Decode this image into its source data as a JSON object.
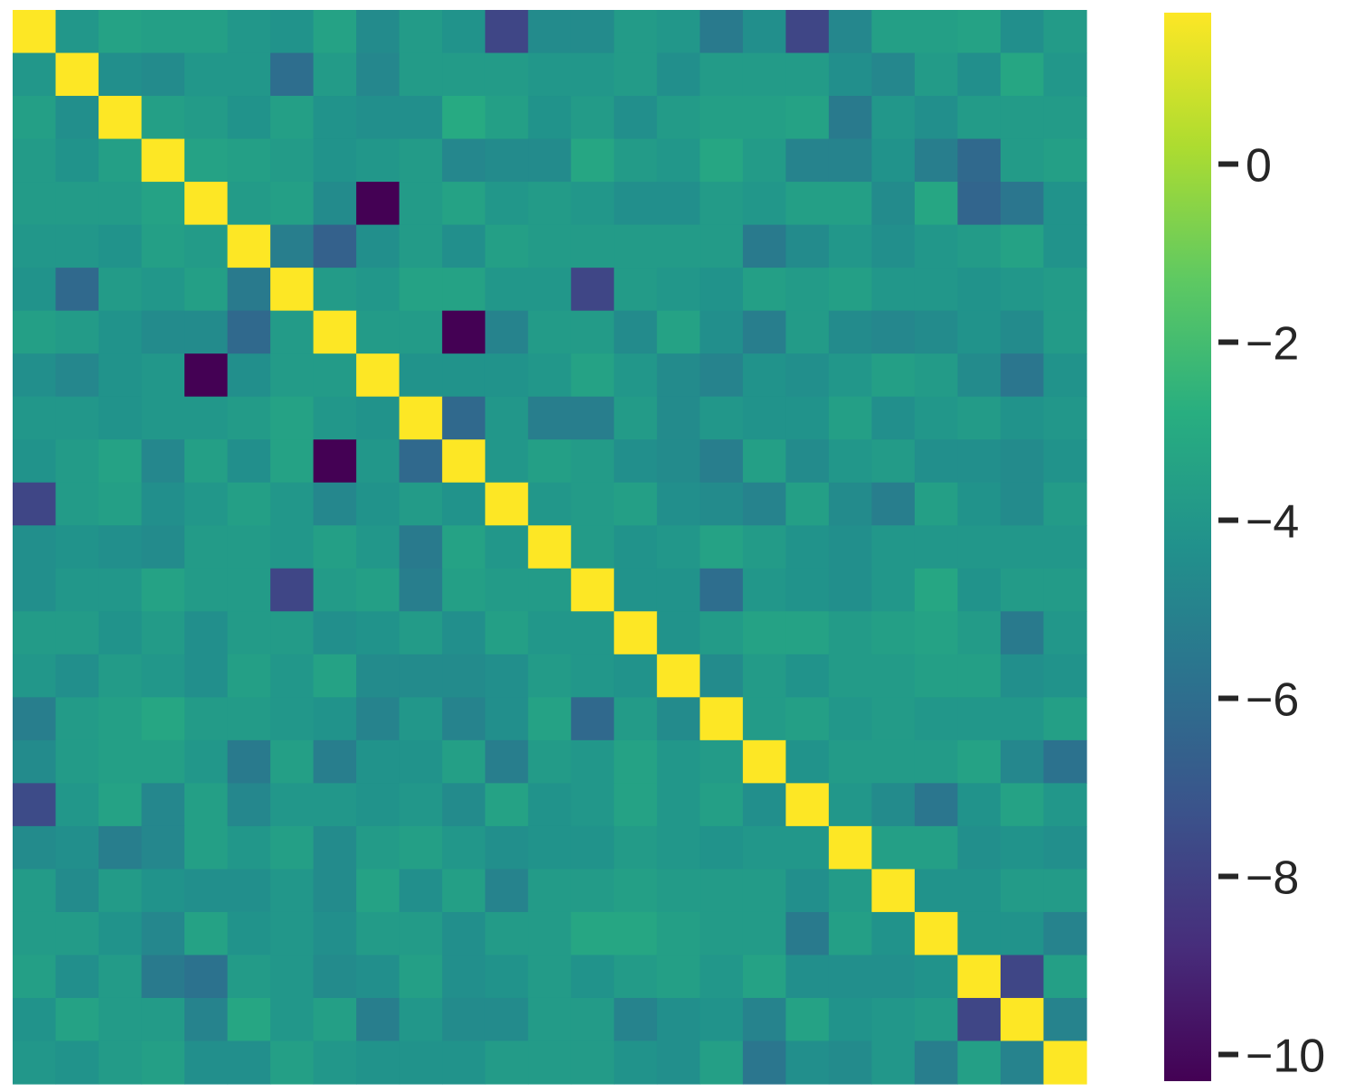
{
  "chart_data": {
    "type": "heatmap",
    "rows": 25,
    "cols": 25,
    "colormap": "viridis",
    "vmin": -10.3,
    "vmax": 1.7,
    "colorbar_ticks": [
      0,
      -2,
      -4,
      -6,
      -8,
      -10
    ],
    "colorbar_tick_labels": [
      "0",
      "−2",
      "−4",
      "−6",
      "−8",
      "−10"
    ],
    "matrix": [
      [
        1.7,
        -4.0,
        -3.4,
        -3.6,
        -3.6,
        -4.0,
        -4.2,
        -3.4,
        -4.6,
        -3.8,
        -4.2,
        -7.8,
        -4.6,
        -4.6,
        -3.8,
        -4.0,
        -5.4,
        -4.4,
        -7.8,
        -4.8,
        -3.6,
        -3.6,
        -3.4,
        -4.4,
        -3.8
      ],
      [
        -4.0,
        1.7,
        -4.4,
        -4.6,
        -4.0,
        -4.0,
        -6.0,
        -3.8,
        -4.8,
        -3.8,
        -3.8,
        -3.8,
        -4.0,
        -4.0,
        -3.8,
        -4.4,
        -3.8,
        -3.8,
        -3.8,
        -4.4,
        -4.8,
        -3.8,
        -4.4,
        -3.2,
        -4.0
      ],
      [
        -3.6,
        -4.4,
        1.7,
        -3.6,
        -3.8,
        -4.2,
        -3.6,
        -4.2,
        -4.4,
        -4.4,
        -3.0,
        -3.6,
        -4.2,
        -3.8,
        -4.4,
        -3.8,
        -3.6,
        -3.6,
        -3.4,
        -5.4,
        -4.0,
        -4.4,
        -3.8,
        -3.8,
        -3.8
      ],
      [
        -3.8,
        -4.2,
        -3.6,
        1.7,
        -3.4,
        -3.6,
        -3.8,
        -4.2,
        -4.0,
        -3.8,
        -4.8,
        -4.6,
        -4.6,
        -3.2,
        -3.8,
        -4.0,
        -3.2,
        -3.8,
        -5.0,
        -5.0,
        -4.2,
        -5.2,
        -6.2,
        -3.8,
        -3.6
      ],
      [
        -3.8,
        -3.8,
        -3.8,
        -3.4,
        1.7,
        -3.8,
        -3.6,
        -4.6,
        -10.3,
        -3.8,
        -3.4,
        -4.0,
        -3.8,
        -4.0,
        -4.4,
        -4.4,
        -3.8,
        -4.0,
        -3.6,
        -3.6,
        -4.6,
        -3.2,
        -6.4,
        -5.6,
        -4.2
      ],
      [
        -4.0,
        -4.0,
        -4.2,
        -3.6,
        -3.8,
        1.7,
        -5.2,
        -6.6,
        -4.4,
        -3.8,
        -4.4,
        -3.6,
        -3.8,
        -3.8,
        -3.8,
        -3.8,
        -3.8,
        -5.4,
        -4.6,
        -4.0,
        -4.4,
        -4.0,
        -3.8,
        -3.4,
        -4.2
      ],
      [
        -4.2,
        -6.2,
        -3.8,
        -4.0,
        -3.6,
        -5.4,
        1.7,
        -3.8,
        -4.0,
        -3.4,
        -3.4,
        -4.0,
        -4.0,
        -7.8,
        -3.8,
        -4.0,
        -4.2,
        -3.6,
        -3.8,
        -3.6,
        -4.0,
        -4.0,
        -4.2,
        -4.0,
        -3.8
      ],
      [
        -3.6,
        -3.8,
        -4.2,
        -4.6,
        -4.6,
        -6.2,
        -3.8,
        1.7,
        -3.8,
        -3.8,
        -10.3,
        -5.0,
        -3.8,
        -3.8,
        -4.6,
        -3.4,
        -4.4,
        -5.2,
        -3.8,
        -4.6,
        -4.8,
        -4.6,
        -4.2,
        -4.6,
        -3.8
      ],
      [
        -4.4,
        -4.8,
        -4.2,
        -4.0,
        -10.3,
        -4.4,
        -3.8,
        -3.8,
        1.7,
        -4.2,
        -4.2,
        -4.2,
        -4.0,
        -3.4,
        -4.0,
        -4.6,
        -5.0,
        -4.2,
        -4.4,
        -4.0,
        -3.6,
        -3.8,
        -4.6,
        -5.6,
        -4.2
      ],
      [
        -4.0,
        -4.0,
        -4.2,
        -4.0,
        -4.0,
        -3.8,
        -3.4,
        -4.0,
        -4.2,
        1.7,
        -6.2,
        -4.0,
        -5.2,
        -5.2,
        -3.8,
        -4.6,
        -4.0,
        -4.2,
        -4.2,
        -3.6,
        -4.4,
        -4.0,
        -3.8,
        -4.2,
        -4.0
      ],
      [
        -4.2,
        -3.8,
        -3.4,
        -4.8,
        -3.6,
        -4.4,
        -3.4,
        -10.3,
        -4.0,
        -6.2,
        1.7,
        -4.0,
        -3.6,
        -3.8,
        -4.4,
        -4.6,
        -5.2,
        -3.6,
        -4.6,
        -4.0,
        -3.8,
        -4.4,
        -4.4,
        -4.6,
        -4.2
      ],
      [
        -7.8,
        -3.8,
        -3.6,
        -4.4,
        -4.0,
        -3.6,
        -4.0,
        -4.8,
        -4.2,
        -3.8,
        -4.2,
        1.7,
        -4.0,
        -3.8,
        -3.6,
        -4.4,
        -4.6,
        -5.0,
        -3.6,
        -4.6,
        -5.2,
        -3.6,
        -4.2,
        -4.6,
        -3.8
      ],
      [
        -4.4,
        -4.2,
        -4.4,
        -4.6,
        -3.8,
        -3.8,
        -4.0,
        -3.6,
        -4.0,
        -5.4,
        -3.4,
        -4.0,
        1.7,
        -3.8,
        -4.2,
        -4.0,
        -3.4,
        -3.8,
        -4.2,
        -4.4,
        -4.0,
        -4.0,
        -4.0,
        -4.0,
        -4.0
      ],
      [
        -4.4,
        -4.0,
        -4.0,
        -3.4,
        -3.8,
        -3.8,
        -7.8,
        -3.8,
        -3.6,
        -5.2,
        -3.6,
        -3.8,
        -3.8,
        1.7,
        -4.2,
        -4.2,
        -6.0,
        -4.0,
        -4.2,
        -4.4,
        -4.0,
        -3.2,
        -4.2,
        -3.8,
        -3.8
      ],
      [
        -3.8,
        -3.8,
        -4.2,
        -3.8,
        -4.4,
        -3.8,
        -3.8,
        -4.4,
        -4.2,
        -3.8,
        -4.4,
        -3.6,
        -4.0,
        -4.0,
        1.7,
        -4.2,
        -3.8,
        -3.4,
        -3.4,
        -3.8,
        -3.6,
        -3.4,
        -3.8,
        -5.4,
        -4.0
      ],
      [
        -4.0,
        -4.4,
        -3.8,
        -4.0,
        -4.4,
        -3.6,
        -4.0,
        -3.4,
        -4.6,
        -4.6,
        -4.6,
        -4.4,
        -3.8,
        -4.0,
        -4.2,
        1.7,
        -4.6,
        -3.8,
        -4.2,
        -3.8,
        -3.8,
        -3.6,
        -3.6,
        -4.4,
        -4.2
      ],
      [
        -5.2,
        -3.8,
        -3.6,
        -3.2,
        -3.8,
        -3.8,
        -4.0,
        -4.2,
        -5.0,
        -4.0,
        -5.0,
        -4.4,
        -3.4,
        -6.2,
        -3.8,
        -4.6,
        1.7,
        -3.8,
        -3.6,
        -4.0,
        -3.8,
        -4.0,
        -4.0,
        -4.0,
        -3.6
      ],
      [
        -4.6,
        -3.8,
        -3.6,
        -3.6,
        -4.0,
        -5.4,
        -3.6,
        -5.2,
        -4.2,
        -4.2,
        -3.6,
        -5.2,
        -3.8,
        -4.0,
        -3.4,
        -4.0,
        -3.8,
        1.7,
        -4.2,
        -3.8,
        -3.8,
        -3.8,
        -3.4,
        -4.8,
        -5.8
      ],
      [
        -7.6,
        -4.0,
        -3.4,
        -4.8,
        -3.6,
        -4.8,
        -4.0,
        -4.0,
        -4.2,
        -4.0,
        -4.6,
        -3.4,
        -4.2,
        -4.0,
        -3.4,
        -4.0,
        -3.6,
        -4.4,
        1.7,
        -4.0,
        -4.6,
        -5.6,
        -4.2,
        -3.4,
        -4.0
      ],
      [
        -4.6,
        -4.4,
        -5.2,
        -4.8,
        -3.6,
        -4.0,
        -3.6,
        -4.6,
        -3.8,
        -3.6,
        -4.0,
        -4.4,
        -4.2,
        -4.2,
        -3.8,
        -4.0,
        -4.2,
        -4.0,
        -4.0,
        1.7,
        -3.6,
        -3.6,
        -4.4,
        -4.2,
        -4.4
      ],
      [
        -3.8,
        -4.6,
        -3.8,
        -4.2,
        -4.4,
        -4.4,
        -4.0,
        -4.6,
        -3.4,
        -4.4,
        -3.6,
        -5.0,
        -3.8,
        -3.8,
        -3.6,
        -3.8,
        -3.8,
        -3.8,
        -4.4,
        -3.8,
        1.7,
        -4.2,
        -4.2,
        -3.8,
        -3.8
      ],
      [
        -3.8,
        -3.8,
        -4.2,
        -4.8,
        -3.4,
        -4.2,
        -4.0,
        -4.4,
        -3.8,
        -3.8,
        -4.4,
        -3.8,
        -3.8,
        -3.2,
        -3.2,
        -3.6,
        -3.8,
        -3.8,
        -5.4,
        -3.6,
        -4.2,
        1.7,
        -4.2,
        -4.2,
        -5.0
      ],
      [
        -3.6,
        -4.4,
        -3.8,
        -5.4,
        -5.8,
        -3.8,
        -4.0,
        -4.6,
        -4.4,
        -3.6,
        -4.4,
        -4.2,
        -3.8,
        -4.2,
        -3.8,
        -3.6,
        -4.0,
        -3.4,
        -4.4,
        -4.4,
        -4.4,
        -4.2,
        1.7,
        -7.8,
        -3.6
      ],
      [
        -4.2,
        -3.4,
        -3.8,
        -3.8,
        -5.0,
        -3.2,
        -4.0,
        -3.6,
        -5.2,
        -4.0,
        -4.6,
        -4.6,
        -3.8,
        -3.8,
        -5.0,
        -4.4,
        -4.2,
        -5.0,
        -3.4,
        -4.2,
        -4.0,
        -3.8,
        -7.8,
        1.7,
        -5.0
      ],
      [
        -4.0,
        -4.2,
        -3.8,
        -3.6,
        -4.4,
        -4.4,
        -3.6,
        -4.0,
        -4.2,
        -4.2,
        -4.2,
        -3.8,
        -3.8,
        -3.8,
        -4.2,
        -4.4,
        -3.6,
        -5.6,
        -4.4,
        -4.6,
        -4.0,
        -5.2,
        -3.6,
        -5.0,
        1.7
      ]
    ]
  }
}
